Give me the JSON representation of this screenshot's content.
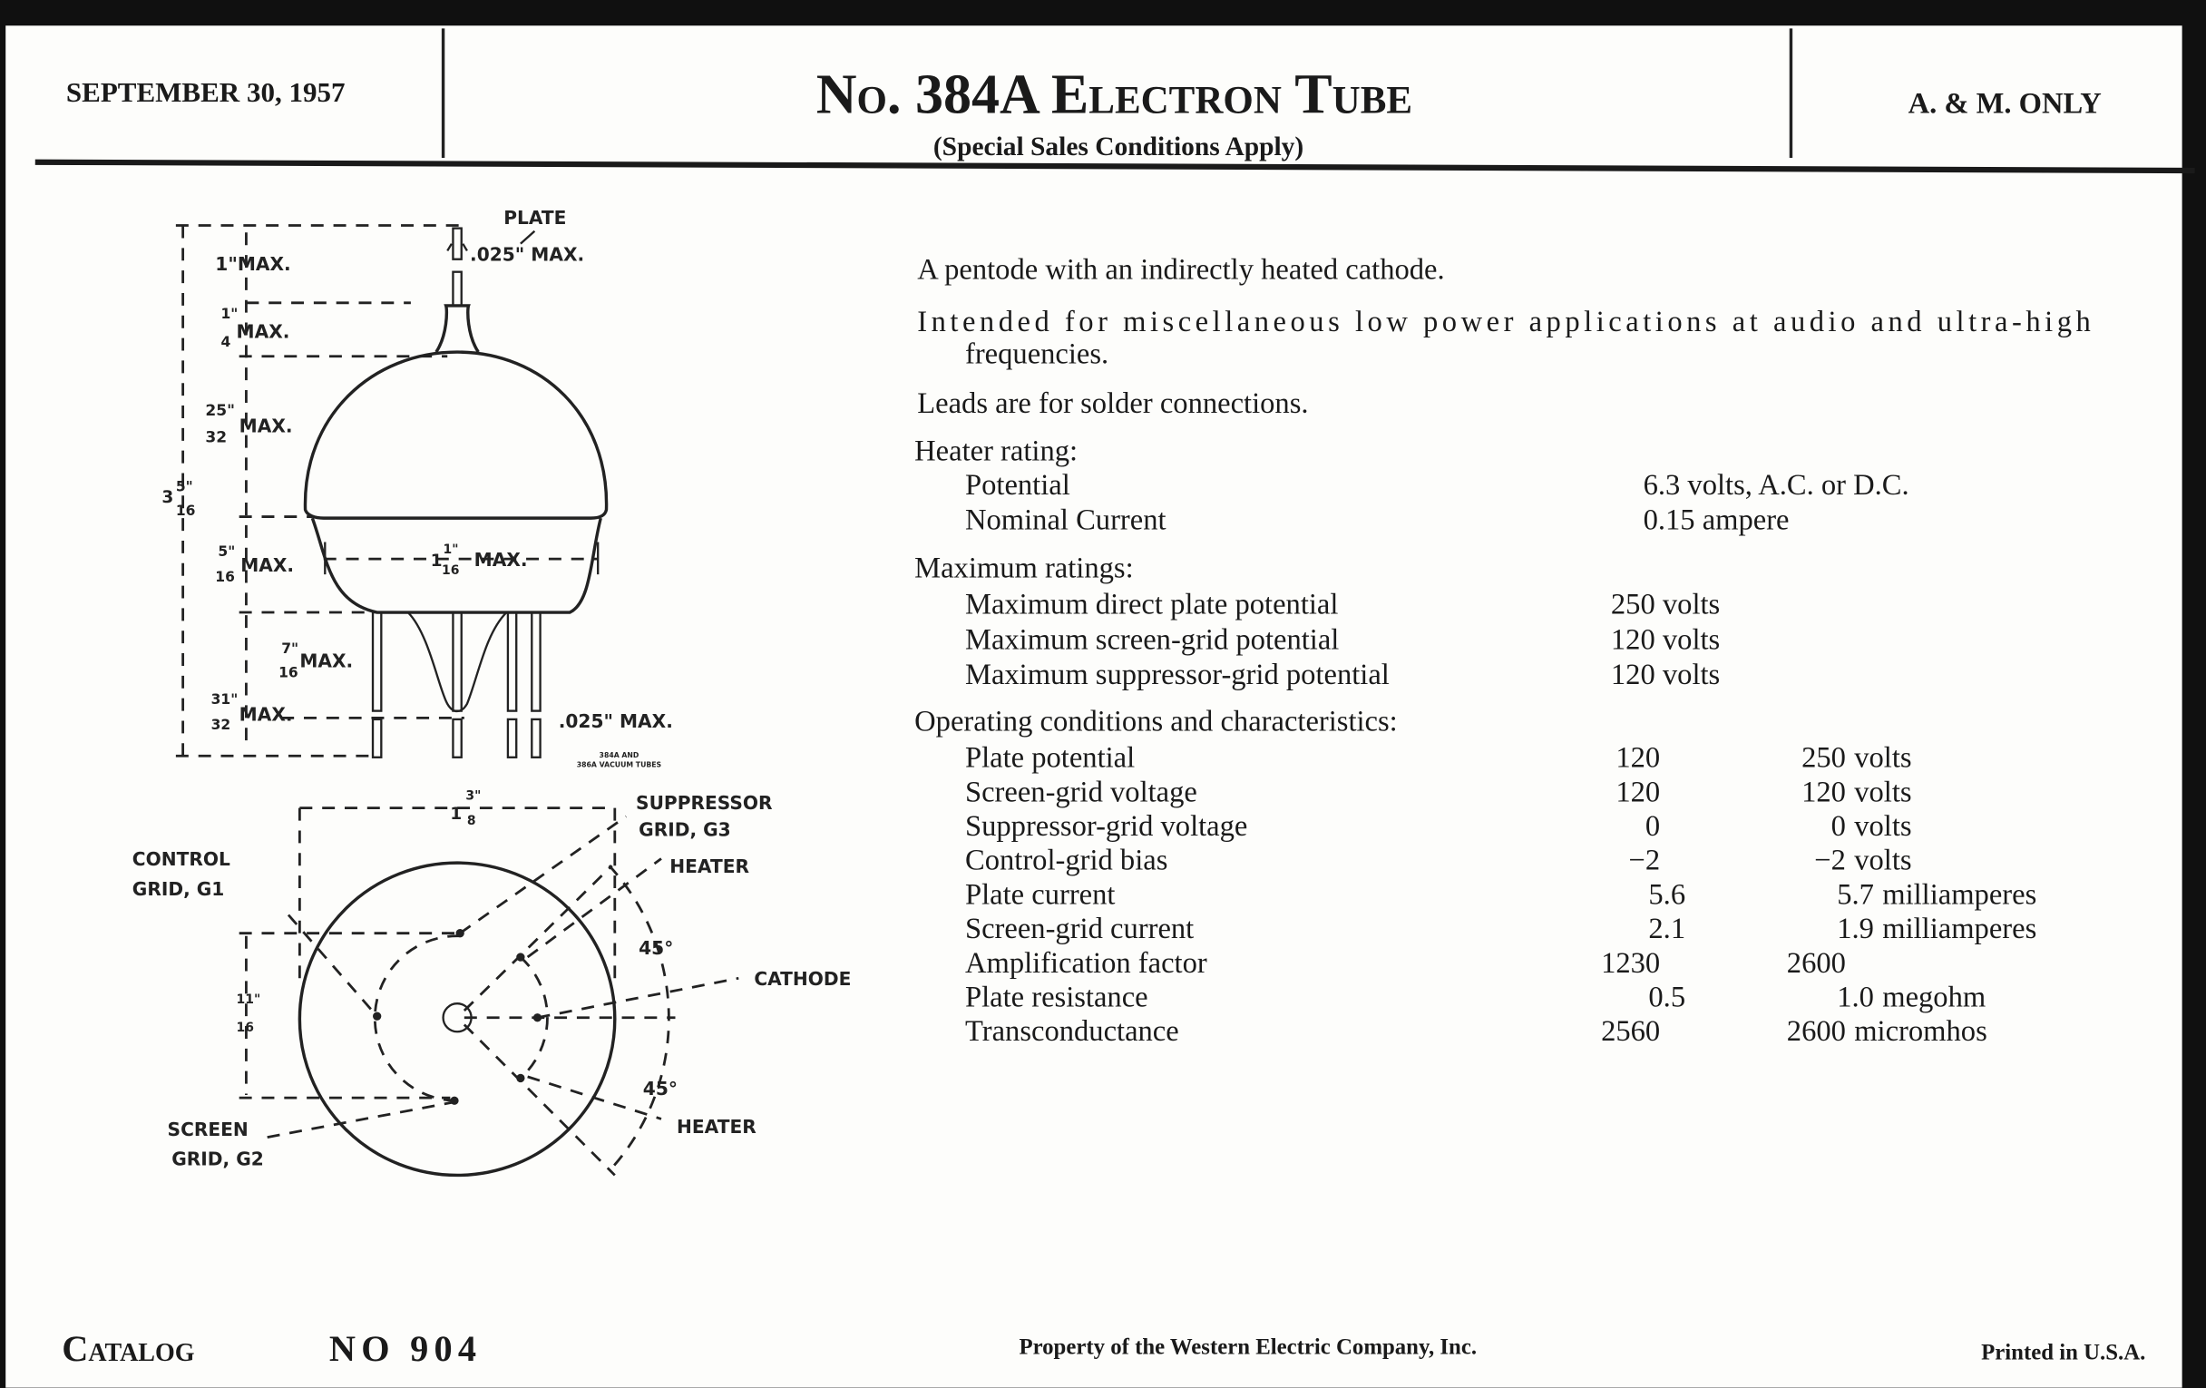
{
  "header": {
    "date": "SEPTEMBER 30, 1957",
    "title": "No. 384A Electron Tube",
    "subtitle": "(Special Sales Conditions Apply)",
    "restriction": "A. & M. ONLY"
  },
  "description": {
    "line1": "A pentode with an indirectly heated cathode.",
    "line2a": "Intended for miscellaneous low power applications at audio and ultra-high",
    "line2b": "frequencies.",
    "line3": "Leads are for solder connections."
  },
  "heater": {
    "heading": "Heater rating:",
    "rows": [
      {
        "label": "Potential",
        "value": "6.3   volts, A.C. or D.C."
      },
      {
        "label": "Nominal Current",
        "value": "0.15 ampere"
      }
    ]
  },
  "maximum": {
    "heading": "Maximum ratings:",
    "rows": [
      {
        "label": "Maximum direct plate potential",
        "value": "250 volts"
      },
      {
        "label": "Maximum screen-grid potential",
        "value": "120 volts"
      },
      {
        "label": "Maximum suppressor-grid potential",
        "value": "120 volts"
      }
    ]
  },
  "operating": {
    "heading": "Operating conditions and characteristics:",
    "rows": [
      {
        "label": "Plate potential",
        "v1": "120",
        "v2": "250",
        "unit": "volts"
      },
      {
        "label": "Screen-grid voltage",
        "v1": "120",
        "v2": "120",
        "unit": "volts"
      },
      {
        "label": "Suppressor-grid voltage",
        "v1": "0",
        "v2": "0",
        "unit": "volts"
      },
      {
        "label": "Control-grid bias",
        "v1": "−2",
        "v2": "−2",
        "unit": "volts"
      },
      {
        "label": "Plate current",
        "v1": "5.6",
        "v2": "5.7",
        "unit": "milliamperes"
      },
      {
        "label": "Screen-grid current",
        "v1": "2.1",
        "v2": "1.9",
        "unit": "milliamperes"
      },
      {
        "label": "Amplification factor",
        "v1": "1230",
        "v2": "2600",
        "unit": ""
      },
      {
        "label": "Plate resistance",
        "v1": "0.5",
        "v2": "1.0",
        "unit": "megohm"
      },
      {
        "label": "Transconductance",
        "v1": "2560",
        "v2": "2600",
        "unit": "micromhos"
      }
    ]
  },
  "diagram": {
    "plate": "PLATE",
    "plate_dia": ".025\" MAX.",
    "lead_dia": ".025\" MAX.",
    "d1": "1\"MAX.",
    "d_quarter_num": "1\"",
    "d_quarter_den": "4",
    "d_25_num": "25\"",
    "d_25_den": "32",
    "d_5_num": "5\"",
    "d_5_den": "16",
    "d_7_num": "7\"",
    "d_7_den": "16",
    "d_31_num": "31\"",
    "d_31_den": "32",
    "max": "MAX.",
    "overall_whole": "3",
    "overall_num": "5\"",
    "overall_den": "16",
    "width_whole": "1",
    "width_num": "1\"",
    "width_den": "16",
    "caption1": "384A AND",
    "caption2": "386A VACUUM TUBES",
    "base_whole": "1",
    "base_num": "3\"",
    "base_den": "8",
    "pin_num": "11\"",
    "pin_den": "16",
    "suppressor1": "SUPPRESSOR",
    "suppressor2": "GRID, G3",
    "heater_top": "HEATER",
    "heater_bottom": "HEATER",
    "control1": "CONTROL",
    "control2": "GRID, G1",
    "cathode": "CATHODE",
    "screen1": "SCREEN",
    "screen2": "GRID, G2",
    "angle1": "45°",
    "angle2": "45°"
  },
  "footer": {
    "catalog": "Catalog",
    "number": "NO 904",
    "property": "Property of the Western Electric Company, Inc.",
    "printed": "Printed in U.S.A."
  }
}
